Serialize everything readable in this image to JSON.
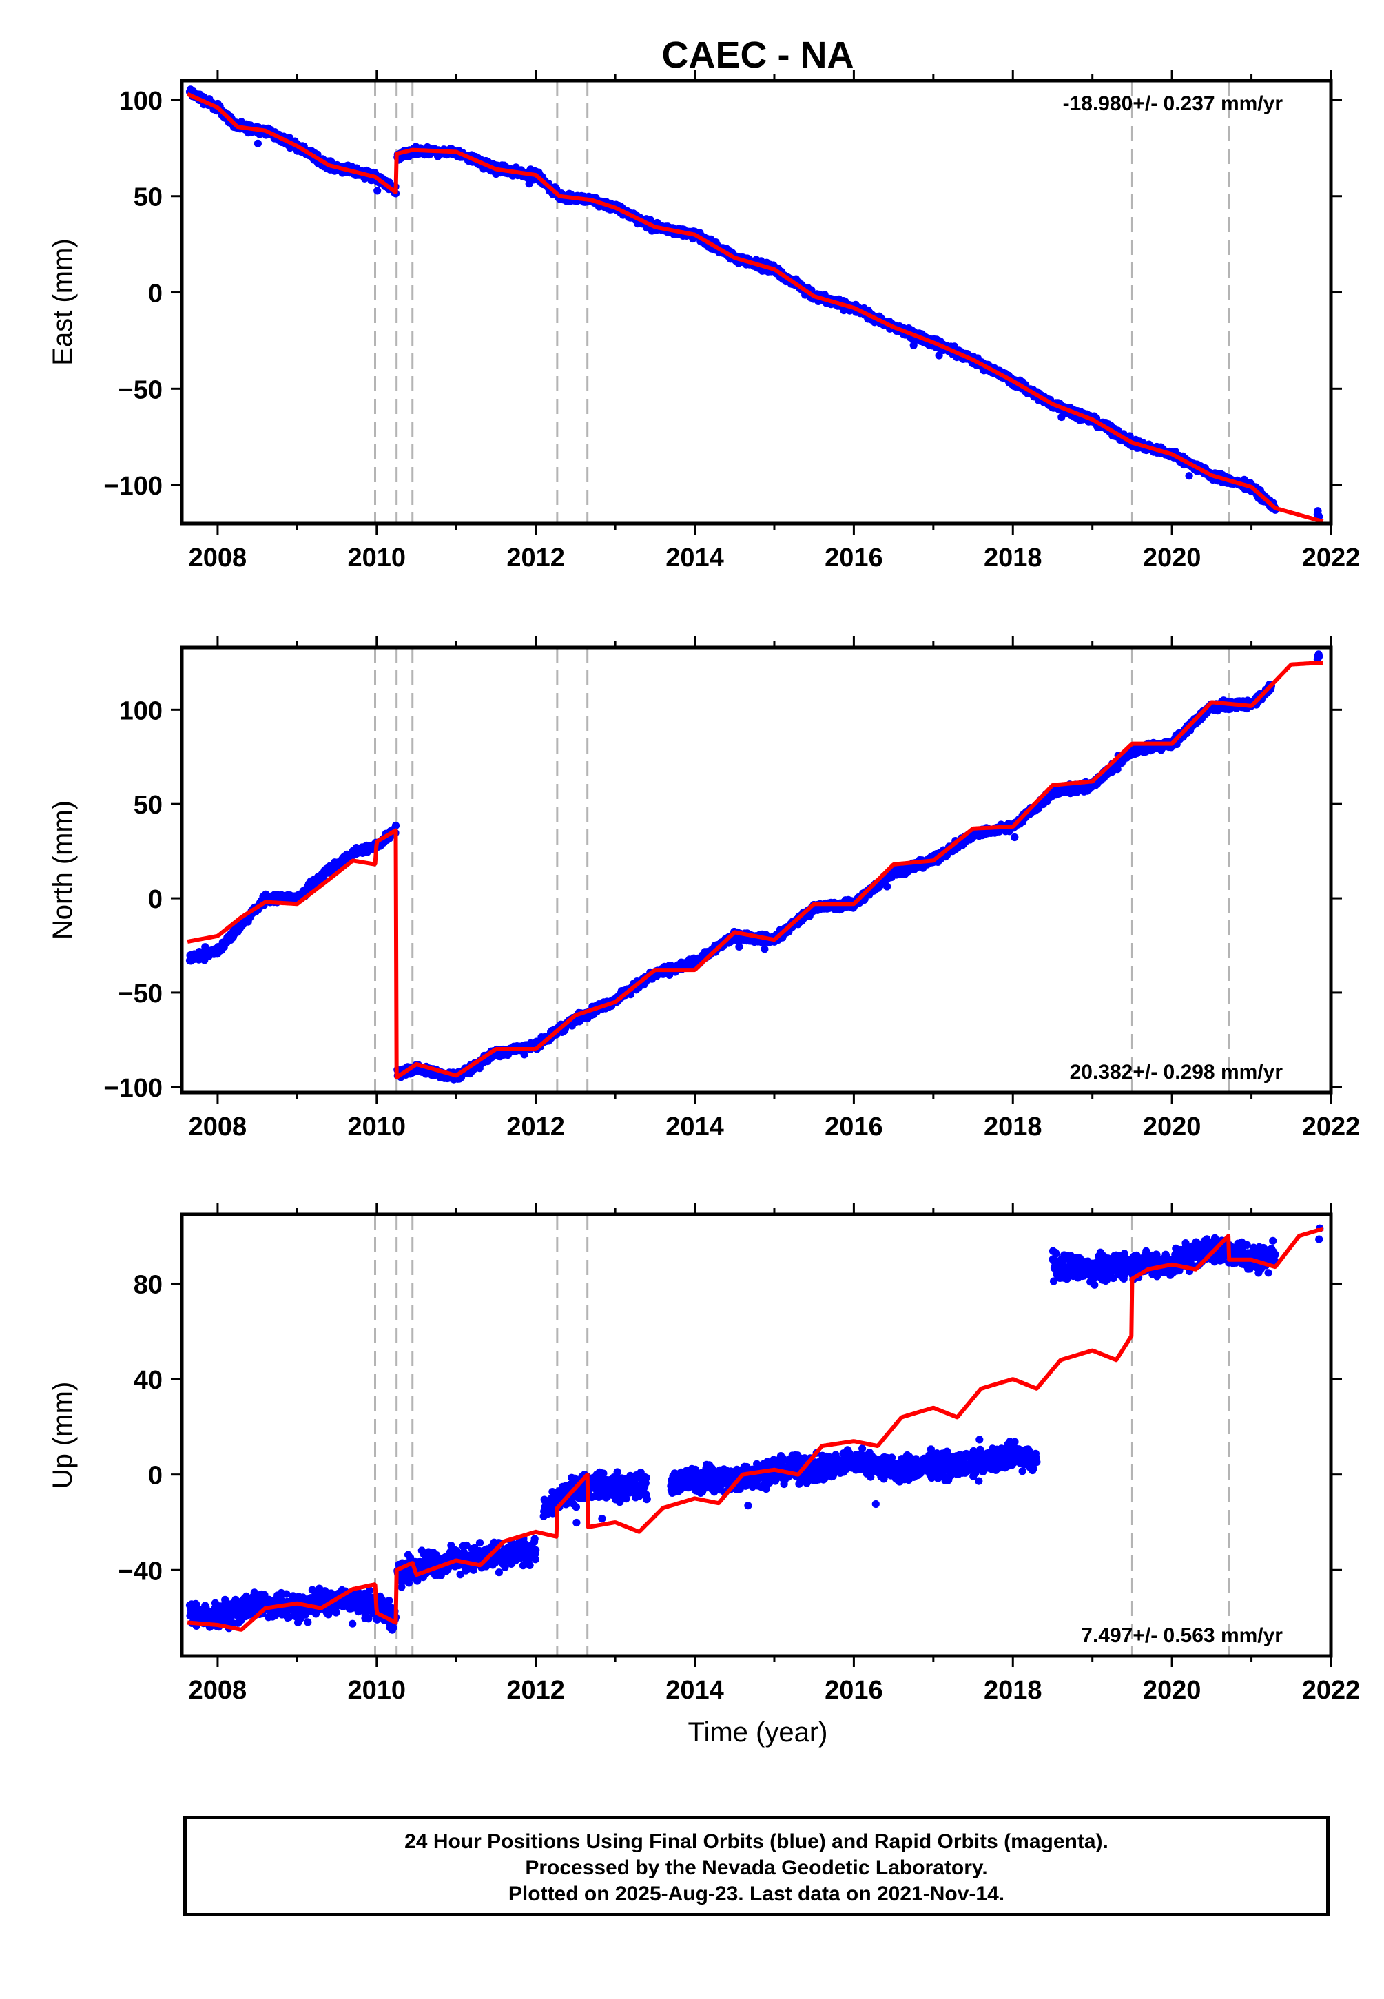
{
  "chart_data": {
    "type": "scatter",
    "title": "CAEC - NA",
    "xlabel": "Time (year)",
    "x_ticks": [
      2008,
      2010,
      2012,
      2014,
      2016,
      2018,
      2020,
      2022
    ],
    "x_tick_labels": [
      "2008",
      "2010",
      "2012",
      "2014",
      "2016",
      "2018",
      "2020",
      "2022"
    ],
    "xlim": [
      2007.55,
      2022.0
    ],
    "event_lines": [
      2009.98,
      2010.25,
      2010.45,
      2012.27,
      2012.65,
      2019.5,
      2020.72
    ],
    "colors": {
      "observations": "#0000ff",
      "model": "#ff0000",
      "events": "#b4b4b4"
    },
    "panels": [
      {
        "name": "east",
        "ylabel": "East (mm)",
        "ylim": [
          -120,
          110
        ],
        "y_ticks": [
          -100,
          -50,
          0,
          50,
          100
        ],
        "y_tick_labels": [
          "−100",
          "−50",
          "0",
          "50",
          "100"
        ],
        "rate_label": "-18.980+/- 0.237 mm/yr",
        "rate_position": "top-right",
        "series": [
          {
            "role": "observations",
            "noise": 1.8,
            "segments": [
              {
                "x": [
                  2007.65,
                  2008.0,
                  2008.25,
                  2008.6,
                  2009.0,
                  2009.4,
                  2009.98,
                  2010.24
                ],
                "y": [
                  104,
                  96,
                  86,
                  84,
                  76,
                  66,
                  60,
                  53
                ]
              },
              {
                "x": [
                  2010.26,
                  2010.45,
                  2011.0,
                  2011.5,
                  2012.0,
                  2012.3,
                  2012.7,
                  2013.0,
                  2013.5,
                  2014.0,
                  2014.5,
                  2015.0,
                  2015.5,
                  2016.0,
                  2016.5,
                  2017.0,
                  2017.5,
                  2018.0,
                  2018.5,
                  2019.0,
                  2019.5,
                  2020.0,
                  2020.5,
                  2021.0,
                  2021.3
                ],
                "y": [
                  70,
                  73,
                  73,
                  64,
                  61,
                  50,
                  48,
                  44,
                  34,
                  30,
                  18,
                  12,
                  -2,
                  -8,
                  -18,
                  -26,
                  -35,
                  -46,
                  -58,
                  -66,
                  -78,
                  -84,
                  -95,
                  -101,
                  -112
                ]
              },
              {
                "x": [
                  2021.83,
                  2021.85
                ],
                "y": [
                  -114,
                  -116
                ]
              }
            ]
          },
          {
            "role": "model",
            "segments": [
              {
                "x": [
                  2007.62,
                  2008.0,
                  2008.25,
                  2008.6,
                  2009.0,
                  2009.4,
                  2009.98,
                  2010.24
                ],
                "y": [
                  103,
                  96,
                  86,
                  84,
                  76,
                  66,
                  60,
                  52
                ]
              },
              {
                "x": [
                  2010.25,
                  2010.45,
                  2011.0,
                  2011.5,
                  2012.0,
                  2012.3,
                  2012.7,
                  2013.0,
                  2013.5,
                  2014.0,
                  2014.5,
                  2015.0,
                  2015.5,
                  2016.0,
                  2016.5,
                  2017.0,
                  2017.5,
                  2018.0,
                  2018.5,
                  2019.0,
                  2019.5,
                  2020.0,
                  2020.5,
                  2021.0,
                  2021.3,
                  2021.9
                ],
                "y": [
                  72,
                  74,
                  73,
                  64,
                  61,
                  50,
                  48,
                  44,
                  34,
                  30,
                  18,
                  12,
                  -2,
                  -8,
                  -18,
                  -26,
                  -35,
                  -46,
                  -58,
                  -66,
                  -78,
                  -84,
                  -95,
                  -101,
                  -112,
                  -119
                ]
              }
            ]
          }
        ]
      },
      {
        "name": "north",
        "ylabel": "North (mm)",
        "ylim": [
          -103,
          133
        ],
        "y_ticks": [
          -100,
          -50,
          0,
          50,
          100
        ],
        "y_tick_labels": [
          "−100",
          "−50",
          "0",
          "50",
          "100"
        ],
        "rate_label": "20.382+/- 0.298 mm/yr",
        "rate_position": "bottom-right",
        "series": [
          {
            "role": "observations",
            "noise": 1.8,
            "segments": [
              {
                "x": [
                  2007.65,
                  2008.0,
                  2008.3,
                  2008.6,
                  2009.0,
                  2009.4,
                  2009.7,
                  2010.0,
                  2010.24
                ],
                "y": [
                  -32,
                  -28,
                  -14,
                  0,
                  0,
                  15,
                  24,
                  28,
                  36
                ]
              },
              {
                "x": [
                  2010.26,
                  2010.5,
                  2011.0,
                  2011.5,
                  2012.0,
                  2012.5,
                  2013.0,
                  2013.5,
                  2014.0,
                  2014.5,
                  2015.0,
                  2015.5,
                  2016.0,
                  2016.5,
                  2017.0,
                  2017.5,
                  2018.0,
                  2018.5,
                  2019.0,
                  2019.5,
                  2020.0,
                  2020.5,
                  2021.0,
                  2021.25
                ],
                "y": [
                  -93,
                  -90,
                  -95,
                  -82,
                  -78,
                  -64,
                  -54,
                  -40,
                  -34,
                  -20,
                  -22,
                  -5,
                  -3,
                  14,
                  20,
                  34,
                  38,
                  56,
                  60,
                  78,
                  82,
                  102,
                  103,
                  112
                ]
              },
              {
                "x": [
                  2021.83,
                  2021.85
                ],
                "y": [
                  127,
                  129
                ]
              }
            ]
          },
          {
            "role": "model",
            "segments": [
              {
                "x": [
                  2007.62,
                  2008.0,
                  2008.3,
                  2008.6,
                  2009.0,
                  2009.4,
                  2009.7,
                  2009.98,
                  2010.0,
                  2010.24
                ],
                "y": [
                  -23,
                  -20,
                  -10,
                  -2,
                  -3,
                  10,
                  20,
                  18,
                  30,
                  36
                ]
              },
              {
                "x": [
                  2010.25,
                  2010.5,
                  2011.0,
                  2011.5,
                  2012.0,
                  2012.5,
                  2013.0,
                  2013.5,
                  2014.0,
                  2014.5,
                  2015.0,
                  2015.5,
                  2016.0,
                  2016.5,
                  2017.0,
                  2017.5,
                  2018.0,
                  2018.5,
                  2019.0,
                  2019.5,
                  2020.0,
                  2020.5,
                  2021.0,
                  2021.5,
                  2021.9
                ],
                "y": [
                  -95,
                  -88,
                  -94,
                  -80,
                  -80,
                  -62,
                  -55,
                  -38,
                  -38,
                  -18,
                  -22,
                  -3,
                  -3,
                  18,
                  20,
                  37,
                  38,
                  60,
                  62,
                  82,
                  82,
                  104,
                  102,
                  124,
                  125
                ]
              }
            ]
          }
        ]
      },
      {
        "name": "up",
        "ylabel": "Up (mm)",
        "ylim": [
          -76,
          109
        ],
        "y_ticks": [
          -40,
          0,
          40,
          80
        ],
        "y_tick_labels": [
          "−40",
          "0",
          "40",
          "80"
        ],
        "rate_label": "7.497+/- 0.563 mm/yr",
        "rate_position": "bottom-right",
        "series": [
          {
            "role": "observations",
            "noise": 4.5,
            "segments": [
              {
                "x": [
                  2007.65,
                  2008.0,
                  2008.5,
                  2009.0,
                  2009.5,
                  2009.98,
                  2010.24
                ],
                "y": [
                  -58,
                  -60,
                  -54,
                  -56,
                  -52,
                  -55,
                  -60
                ]
              },
              {
                "x": [
                  2010.26,
                  2010.5,
                  2011.0,
                  2011.5,
                  2012.0
                ],
                "y": [
                  -42,
                  -38,
                  -36,
                  -34,
                  -32
                ]
              },
              {
                "x": [
                  2012.1,
                  2012.4,
                  2012.7,
                  2013.0,
                  2013.4
                ],
                "y": [
                  -14,
                  -8,
                  -4,
                  -6,
                  -4
                ]
              },
              {
                "x": [
                  2013.7,
                  2014.0,
                  2014.5,
                  2015.0,
                  2015.5,
                  2016.0,
                  2016.5,
                  2017.0,
                  2017.5,
                  2018.0,
                  2018.3
                ],
                "y": [
                  -4,
                  -2,
                  -2,
                  2,
                  2,
                  6,
                  2,
                  4,
                  4,
                  8,
                  6
                ]
              },
              {
                "x": [
                  2018.5,
                  2019.0,
                  2019.5,
                  2020.0,
                  2020.4,
                  2020.72,
                  2021.0,
                  2021.3
                ],
                "y": [
                  88,
                  86,
                  88,
                  88,
                  94,
                  94,
                  90,
                  92
                ]
              },
              {
                "x": [
                  2021.85,
                  2021.86
                ],
                "y": [
                  97,
                  99
                ]
              }
            ]
          },
          {
            "role": "model",
            "segments": [
              {
                "x": [
                  2007.62,
                  2008.0,
                  2008.3,
                  2008.6,
                  2009.0,
                  2009.3,
                  2009.7,
                  2009.98,
                  2010.0,
                  2010.24
                ],
                "y": [
                  -62,
                  -63,
                  -65,
                  -56,
                  -54,
                  -56,
                  -48,
                  -46,
                  -58,
                  -62
                ]
              },
              {
                "x": [
                  2010.25,
                  2010.45,
                  2010.5,
                  2011.0,
                  2011.3,
                  2011.6,
                  2012.0,
                  2012.26
                ],
                "y": [
                  -40,
                  -37,
                  -42,
                  -36,
                  -38,
                  -28,
                  -24,
                  -26
                ]
              },
              {
                "x": [
                  2012.27,
                  2012.65
                ],
                "y": [
                  -14,
                  0
                ]
              },
              {
                "x": [
                  2012.66,
                  2013.0,
                  2013.3,
                  2013.6,
                  2014.0,
                  2014.3,
                  2014.6,
                  2015.0,
                  2015.3,
                  2015.6,
                  2016.0,
                  2016.3,
                  2016.6,
                  2017.0,
                  2017.3,
                  2017.6,
                  2018.0,
                  2018.3,
                  2018.6,
                  2019.0,
                  2019.3,
                  2019.49
                ],
                "y": [
                  -22,
                  -20,
                  -24,
                  -14,
                  -10,
                  -12,
                  0,
                  2,
                  0,
                  12,
                  14,
                  12,
                  24,
                  28,
                  24,
                  36,
                  40,
                  36,
                  48,
                  52,
                  48,
                  58
                ]
              },
              {
                "x": [
                  2019.5,
                  2019.7,
                  2020.0,
                  2020.3,
                  2020.71
                ],
                "y": [
                  82,
                  86,
                  88,
                  86,
                  100
                ]
              },
              {
                "x": [
                  2020.72,
                  2021.0,
                  2021.3,
                  2021.6,
                  2021.9
                ],
                "y": [
                  90,
                  90,
                  87,
                  100,
                  103
                ]
              }
            ]
          }
        ]
      }
    ]
  },
  "footer": {
    "line1": "24 Hour Positions Using Final Orbits (blue) and Rapid Orbits (magenta).",
    "line2": "Processed by the Nevada Geodetic Laboratory.",
    "line3": "Plotted on 2025-Aug-23. Last data on 2021-Nov-14."
  }
}
